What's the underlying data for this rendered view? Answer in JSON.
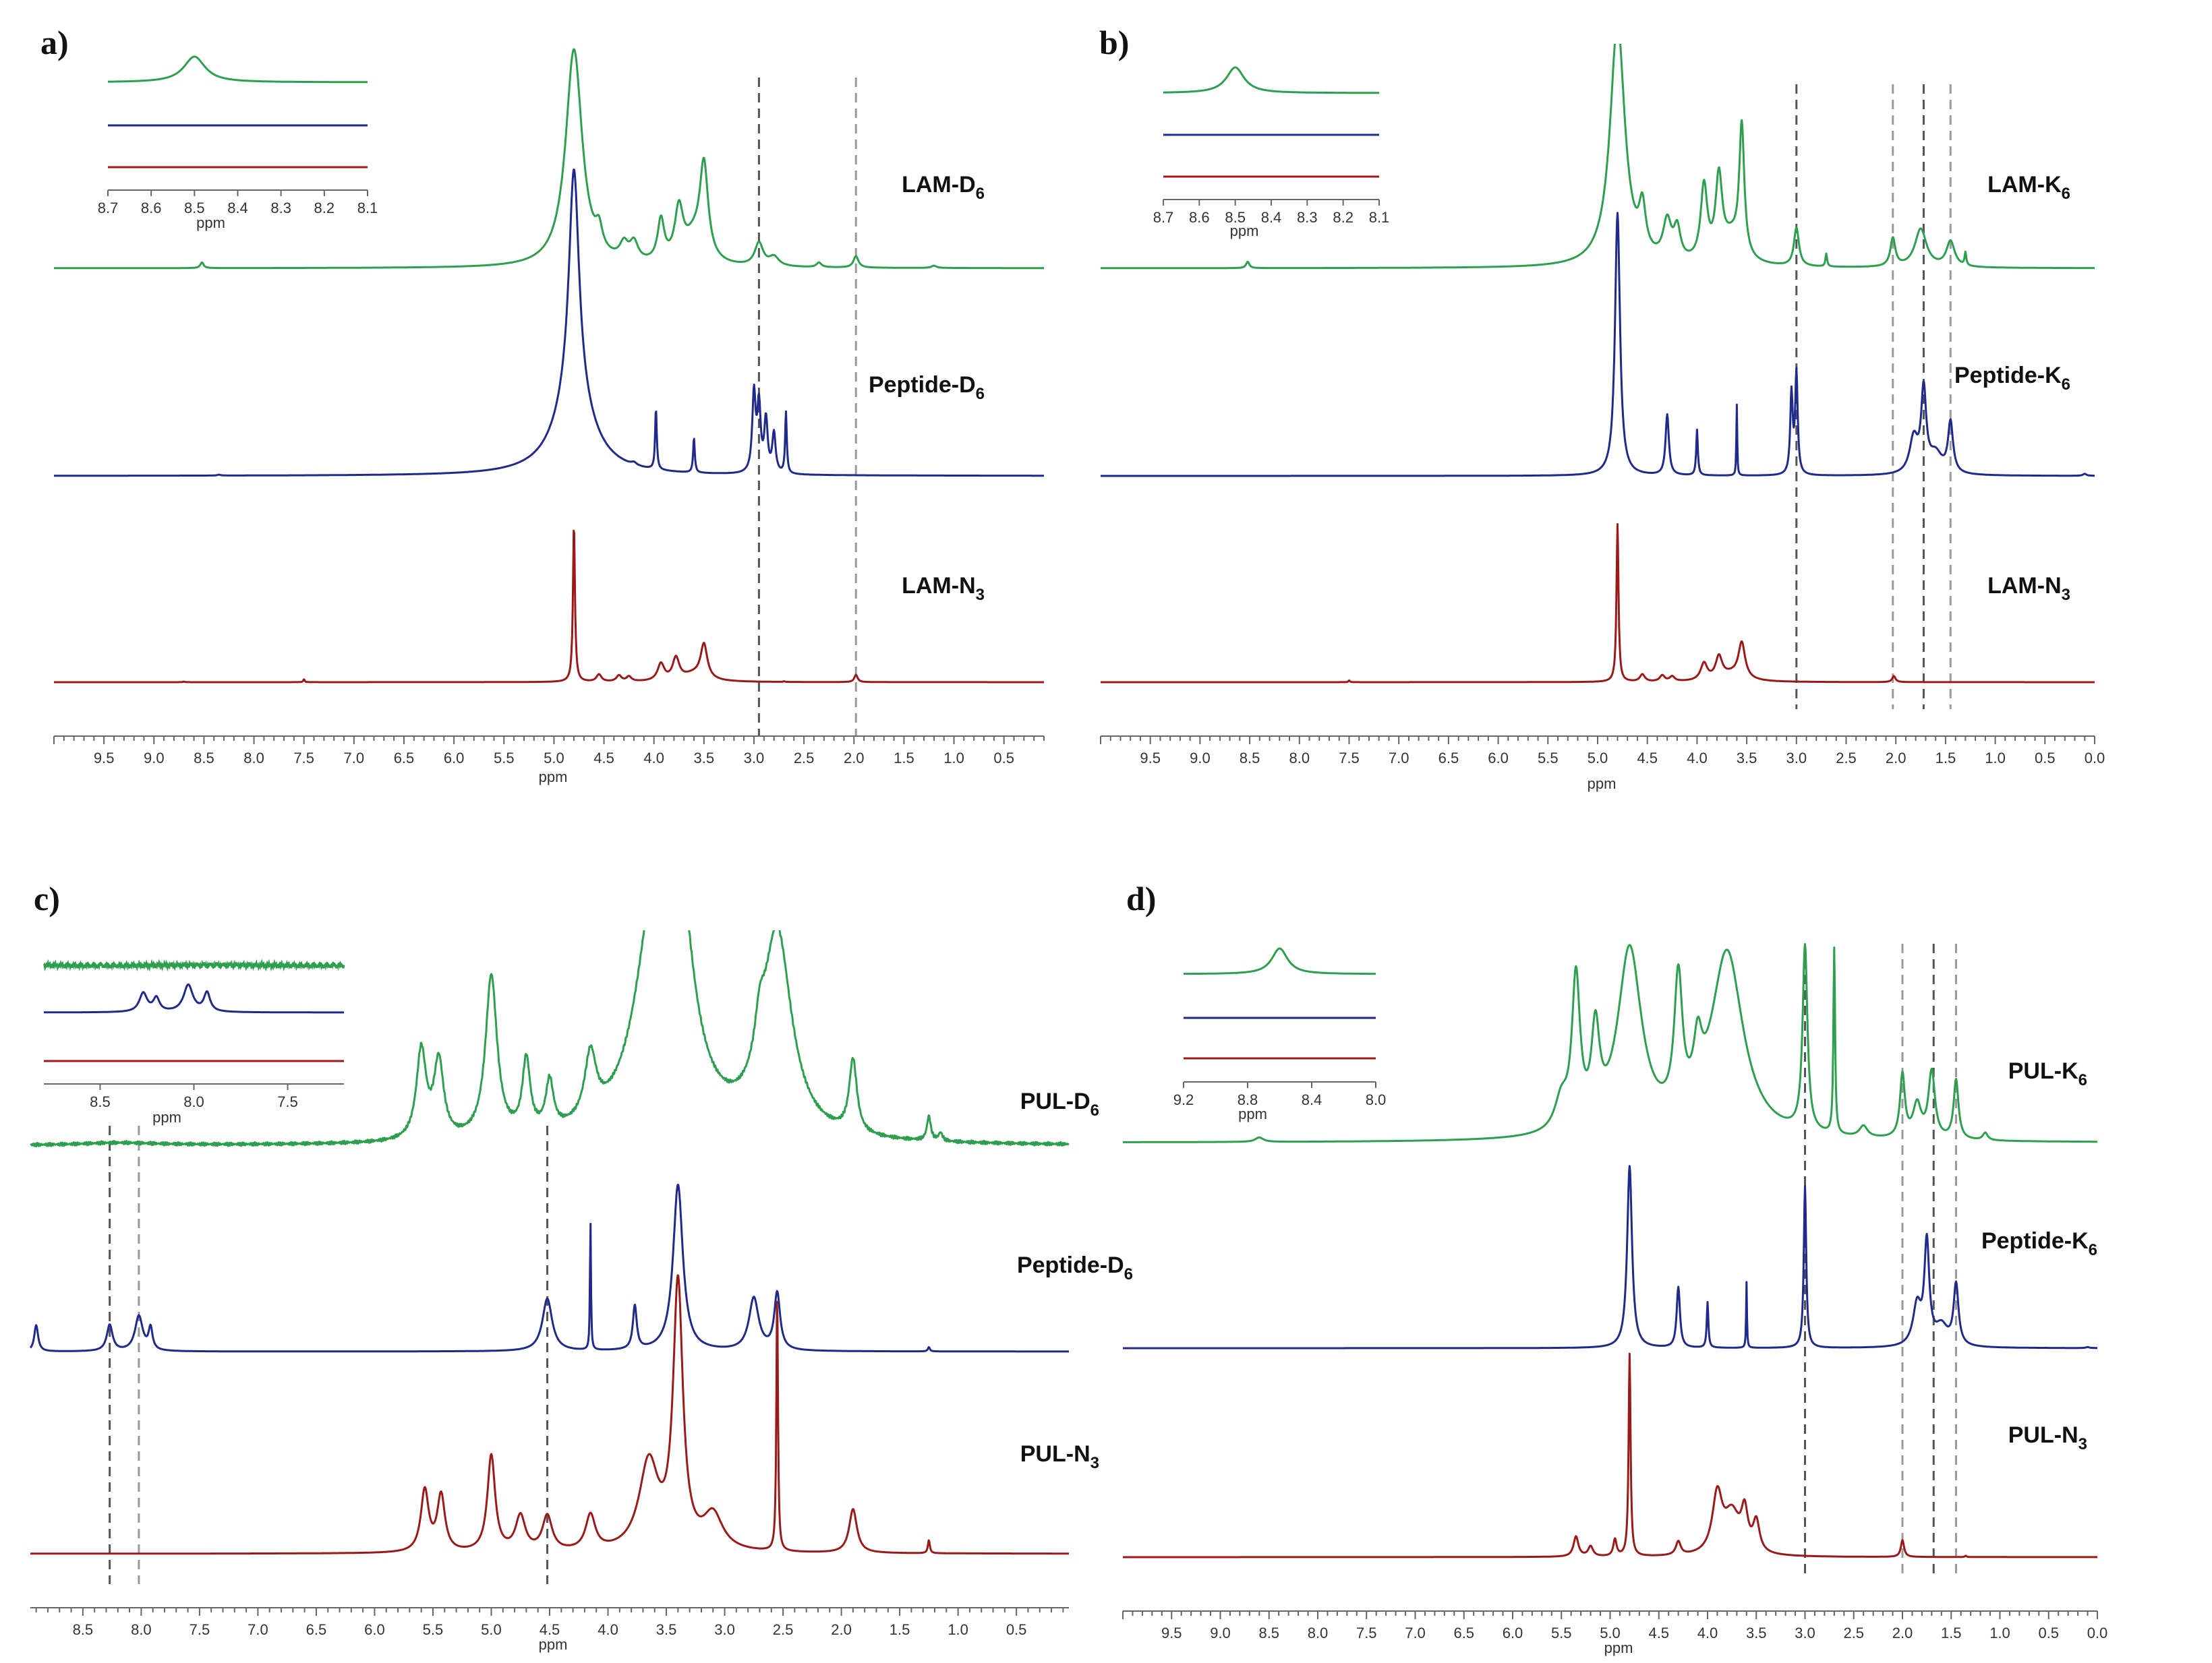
{
  "chart_data": [
    {
      "panel": "a)",
      "type": "line",
      "xlabel": "ppm",
      "xlim": [
        10.0,
        0.1
      ],
      "ticks": [
        "9.5",
        "9.0",
        "8.5",
        "8.0",
        "7.5",
        "7.0",
        "6.5",
        "6.0",
        "5.5",
        "5.0",
        "4.5",
        "4.0",
        "3.5",
        "3.0",
        "2.5",
        "2.0",
        "1.5",
        "1.0",
        "0.5"
      ],
      "dashed_lines_ppm": [
        2.95,
        1.98
      ],
      "series": [
        {
          "name": "LAM-D",
          "sub": "6",
          "color": "#2e9e4f",
          "peaks": [
            [
              8.52,
              0.02,
              0.05
            ],
            [
              4.8,
              0.1,
              1.9
            ],
            [
              4.55,
              0.04,
              0.18
            ],
            [
              4.3,
              0.05,
              0.14
            ],
            [
              4.2,
              0.05,
              0.16
            ],
            [
              3.93,
              0.04,
              0.36
            ],
            [
              3.75,
              0.05,
              0.44
            ],
            [
              3.5,
              0.05,
              0.8
            ],
            [
              3.6,
              0.12,
              0.22
            ],
            [
              2.95,
              0.05,
              0.2
            ],
            [
              2.8,
              0.06,
              0.08
            ],
            [
              2.35,
              0.03,
              0.04
            ],
            [
              1.98,
              0.03,
              0.1
            ],
            [
              1.2,
              0.03,
              0.02
            ]
          ]
        },
        {
          "name": "Peptide-D",
          "sub": "6",
          "color": "#1f2a8a",
          "peaks": [
            [
              4.8,
              0.06,
              2.6
            ],
            [
              4.8,
              0.22,
              0.9
            ],
            [
              4.2,
              0.03,
              0.03
            ],
            [
              3.98,
              0.01,
              0.7
            ],
            [
              3.6,
              0.01,
              0.4
            ],
            [
              3.0,
              0.02,
              0.9
            ],
            [
              2.95,
              0.02,
              0.75
            ],
            [
              2.88,
              0.02,
              0.6
            ],
            [
              2.8,
              0.02,
              0.45
            ],
            [
              2.68,
              0.01,
              0.7
            ],
            [
              8.35,
              0.02,
              0.01
            ]
          ]
        },
        {
          "name": "LAM-N",
          "sub": "3",
          "color": "#9a1a1a",
          "peaks": [
            [
              4.8,
              0.012,
              2.6
            ],
            [
              4.55,
              0.03,
              0.12
            ],
            [
              4.35,
              0.03,
              0.1
            ],
            [
              4.25,
              0.03,
              0.08
            ],
            [
              3.93,
              0.04,
              0.28
            ],
            [
              3.78,
              0.04,
              0.36
            ],
            [
              3.5,
              0.04,
              0.56
            ],
            [
              3.6,
              0.14,
              0.12
            ],
            [
              7.5,
              0.008,
              0.05
            ],
            [
              8.7,
              0.01,
              0.01
            ],
            [
              2.7,
              0.01,
              0.01
            ],
            [
              1.98,
              0.02,
              0.12
            ]
          ]
        }
      ],
      "inset": {
        "xlim": [
          8.7,
          8.1
        ],
        "ticks": [
          "8.7",
          "8.6",
          "8.5",
          "8.4",
          "8.3",
          "8.2",
          "8.1"
        ],
        "xlabel": "ppm",
        "peaks": [
          [
            [
              8.5,
              0.03,
              1.0
            ]
          ],
          [],
          []
        ]
      }
    },
    {
      "panel": "b)",
      "type": "line",
      "xlabel": "ppm",
      "xlim": [
        10.0,
        0.0
      ],
      "ticks": [
        "9.5",
        "9.0",
        "8.5",
        "8.0",
        "7.5",
        "7.0",
        "6.5",
        "6.0",
        "5.5",
        "5.0",
        "4.5",
        "4.0",
        "3.5",
        "3.0",
        "2.5",
        "2.0",
        "1.5",
        "1.0",
        "0.5",
        "0.0"
      ],
      "dashed_lines_ppm": [
        3.0,
        2.03,
        1.72,
        1.45
      ],
      "series": [
        {
          "name": "LAM-K",
          "sub": "6",
          "color": "#2e9e4f",
          "peaks": [
            [
              8.52,
              0.02,
              0.05
            ],
            [
              4.8,
              0.09,
              1.9
            ],
            [
              4.55,
              0.04,
              0.35
            ],
            [
              4.3,
              0.05,
              0.3
            ],
            [
              4.2,
              0.04,
              0.24
            ],
            [
              3.93,
              0.04,
              0.58
            ],
            [
              3.78,
              0.04,
              0.62
            ],
            [
              3.55,
              0.03,
              1.0
            ],
            [
              3.65,
              0.12,
              0.2
            ],
            [
              3.0,
              0.03,
              0.3
            ],
            [
              2.7,
              0.01,
              0.1
            ],
            [
              2.03,
              0.03,
              0.22
            ],
            [
              1.75,
              0.07,
              0.3
            ],
            [
              1.45,
              0.05,
              0.2
            ],
            [
              1.3,
              0.01,
              0.1
            ]
          ]
        },
        {
          "name": "Peptide-K",
          "sub": "6",
          "color": "#1f2a8a",
          "peaks": [
            [
              4.8,
              0.03,
              2.6
            ],
            [
              4.3,
              0.02,
              0.6
            ],
            [
              4.0,
              0.01,
              0.45
            ],
            [
              3.6,
              0.005,
              0.7
            ],
            [
              3.0,
              0.015,
              1.0
            ],
            [
              3.05,
              0.015,
              0.8
            ],
            [
              1.72,
              0.03,
              0.8
            ],
            [
              1.82,
              0.05,
              0.35
            ],
            [
              1.45,
              0.03,
              0.5
            ],
            [
              1.6,
              0.08,
              0.2
            ],
            [
              0.1,
              0.02,
              0.02
            ]
          ]
        },
        {
          "name": "LAM-N",
          "sub": "3",
          "color": "#9a1a1a",
          "peaks": [
            [
              4.8,
              0.012,
              2.6
            ],
            [
              4.55,
              0.03,
              0.12
            ],
            [
              4.35,
              0.03,
              0.1
            ],
            [
              4.25,
              0.03,
              0.08
            ],
            [
              3.93,
              0.04,
              0.28
            ],
            [
              3.78,
              0.04,
              0.36
            ],
            [
              3.55,
              0.04,
              0.58
            ],
            [
              3.65,
              0.14,
              0.12
            ],
            [
              7.5,
              0.008,
              0.03
            ],
            [
              2.02,
              0.02,
              0.1
            ]
          ]
        }
      ],
      "inset": {
        "xlim": [
          8.7,
          8.1
        ],
        "ticks": [
          "8.7",
          "8.6",
          "8.5",
          "8.4",
          "8.3",
          "8.2",
          "8.1"
        ],
        "xlabel": "ppm",
        "peaks": [
          [
            [
              8.5,
              0.03,
              1.0
            ]
          ],
          [],
          []
        ]
      }
    },
    {
      "panel": "c)",
      "type": "line",
      "xlabel": "ppm",
      "xlim": [
        8.95,
        0.05
      ],
      "ticks": [
        "8.5",
        "8.0",
        "7.5",
        "7.0",
        "6.5",
        "6.0",
        "5.5",
        "5.0",
        "4.5",
        "4.0",
        "3.5",
        "3.0",
        "2.5",
        "2.0",
        "1.5",
        "1.0",
        "0.5"
      ],
      "dashed_lines_ppm": [
        8.27,
        8.02,
        4.52
      ],
      "series": [
        {
          "name": "PUL-D",
          "sub": "6",
          "color": "#2e9e4f",
          "peaks": [
            [
              5.6,
              0.05,
              1.1
            ],
            [
              5.45,
              0.05,
              0.95
            ],
            [
              5.0,
              0.06,
              2.0
            ],
            [
              4.7,
              0.04,
              0.9
            ],
            [
              4.5,
              0.04,
              0.6
            ],
            [
              4.15,
              0.06,
              0.8
            ],
            [
              3.6,
              0.2,
              2.5
            ],
            [
              3.4,
              0.15,
              2.5
            ],
            [
              2.55,
              0.15,
              2.5
            ],
            [
              2.7,
              0.05,
              0.5
            ],
            [
              1.9,
              0.04,
              0.9
            ],
            [
              1.25,
              0.02,
              0.3
            ],
            [
              1.15,
              0.02,
              0.1
            ],
            [
              8.2,
              0.4,
              0.03
            ]
          ]
        },
        {
          "name": "Peptide-D",
          "sub": "6",
          "color": "#1f2a8a",
          "peaks": [
            [
              8.9,
              0.02,
              0.3
            ],
            [
              8.27,
              0.03,
              0.3
            ],
            [
              8.02,
              0.04,
              0.4
            ],
            [
              7.92,
              0.02,
              0.25
            ],
            [
              4.52,
              0.05,
              0.6
            ],
            [
              4.15,
              0.005,
              1.5
            ],
            [
              3.77,
              0.02,
              0.5
            ],
            [
              3.4,
              0.05,
              1.9
            ],
            [
              2.75,
              0.05,
              0.6
            ],
            [
              2.55,
              0.03,
              0.65
            ],
            [
              1.25,
              0.01,
              0.05
            ]
          ]
        },
        {
          "name": "PUL-N",
          "sub": "3",
          "color": "#9a1a1a",
          "peaks": [
            [
              5.57,
              0.04,
              0.7
            ],
            [
              5.43,
              0.04,
              0.64
            ],
            [
              5.0,
              0.04,
              1.1
            ],
            [
              4.75,
              0.05,
              0.4
            ],
            [
              4.52,
              0.05,
              0.4
            ],
            [
              4.15,
              0.05,
              0.4
            ],
            [
              3.65,
              0.1,
              1.0
            ],
            [
              3.4,
              0.05,
              3.0
            ],
            [
              3.1,
              0.1,
              0.4
            ],
            [
              2.55,
              0.008,
              3.0
            ],
            [
              1.9,
              0.04,
              0.5
            ],
            [
              1.25,
              0.01,
              0.15
            ]
          ]
        }
      ],
      "inset": {
        "xlim": [
          8.8,
          7.2
        ],
        "ticks": [
          "8.5",
          "8.0",
          "7.5"
        ],
        "xlabel": "ppm",
        "peaks": [
          [],
          [
            [
              8.27,
              0.025,
              0.7
            ],
            [
              8.2,
              0.02,
              0.5
            ],
            [
              8.03,
              0.03,
              1.0
            ],
            [
              7.93,
              0.02,
              0.7
            ]
          ],
          []
        ]
      }
    },
    {
      "panel": "d)",
      "type": "line",
      "xlabel": "ppm",
      "xlim": [
        10.0,
        0.0
      ],
      "ticks": [
        "9.5",
        "9.0",
        "8.5",
        "8.0",
        "7.5",
        "7.0",
        "6.5",
        "6.0",
        "5.5",
        "5.0",
        "4.5",
        "4.0",
        "3.5",
        "3.0",
        "2.5",
        "2.0",
        "1.5",
        "1.0",
        "0.5",
        "0.0"
      ],
      "dashed_lines_ppm": [
        3.0,
        2.0,
        1.68,
        1.45
      ],
      "series": [
        {
          "name": "PUL-K",
          "sub": "6",
          "color": "#2e9e4f",
          "peaks": [
            [
              5.5,
              0.08,
              0.4
            ],
            [
              5.35,
              0.05,
              2.0
            ],
            [
              5.15,
              0.05,
              1.2
            ],
            [
              4.8,
              0.15,
              2.5
            ],
            [
              4.3,
              0.05,
              1.8
            ],
            [
              4.1,
              0.05,
              0.7
            ],
            [
              3.8,
              0.2,
              2.5
            ],
            [
              3.0,
              0.03,
              2.5
            ],
            [
              2.7,
              0.01,
              2.5
            ],
            [
              2.4,
              0.05,
              0.15
            ],
            [
              2.0,
              0.03,
              0.85
            ],
            [
              1.85,
              0.05,
              0.45
            ],
            [
              1.7,
              0.04,
              0.9
            ],
            [
              1.45,
              0.03,
              0.8
            ],
            [
              1.15,
              0.03,
              0.1
            ],
            [
              8.6,
              0.05,
              0.06
            ]
          ]
        },
        {
          "name": "Peptide-K",
          "sub": "6",
          "color": "#1f2a8a",
          "peaks": [
            [
              4.8,
              0.03,
              1.8
            ],
            [
              4.3,
              0.02,
              0.6
            ],
            [
              4.0,
              0.01,
              0.45
            ],
            [
              3.6,
              0.005,
              0.65
            ],
            [
              3.0,
              0.015,
              1.6
            ],
            [
              1.75,
              0.03,
              1.0
            ],
            [
              1.85,
              0.05,
              0.4
            ],
            [
              1.45,
              0.03,
              0.6
            ],
            [
              1.6,
              0.08,
              0.2
            ],
            [
              0.1,
              0.02,
              0.01
            ]
          ]
        },
        {
          "name": "PUL-N",
          "sub": "3",
          "color": "#9a1a1a",
          "peaks": [
            [
              4.8,
              0.012,
              3.0
            ],
            [
              5.35,
              0.03,
              0.3
            ],
            [
              5.2,
              0.03,
              0.15
            ],
            [
              4.95,
              0.02,
              0.25
            ],
            [
              4.3,
              0.03,
              0.2
            ],
            [
              3.9,
              0.06,
              0.85
            ],
            [
              3.75,
              0.1,
              0.6
            ],
            [
              3.62,
              0.04,
              0.55
            ],
            [
              3.5,
              0.04,
              0.45
            ],
            [
              2.0,
              0.02,
              0.25
            ],
            [
              1.35,
              0.01,
              0.02
            ]
          ]
        }
      ],
      "inset": {
        "xlim": [
          9.2,
          8.0
        ],
        "ticks": [
          "9.2",
          "8.8",
          "8.4",
          "8.0"
        ],
        "xlabel": "ppm",
        "peaks": [
          [
            [
              8.6,
              0.06,
              1.0
            ]
          ],
          [],
          []
        ]
      }
    }
  ]
}
